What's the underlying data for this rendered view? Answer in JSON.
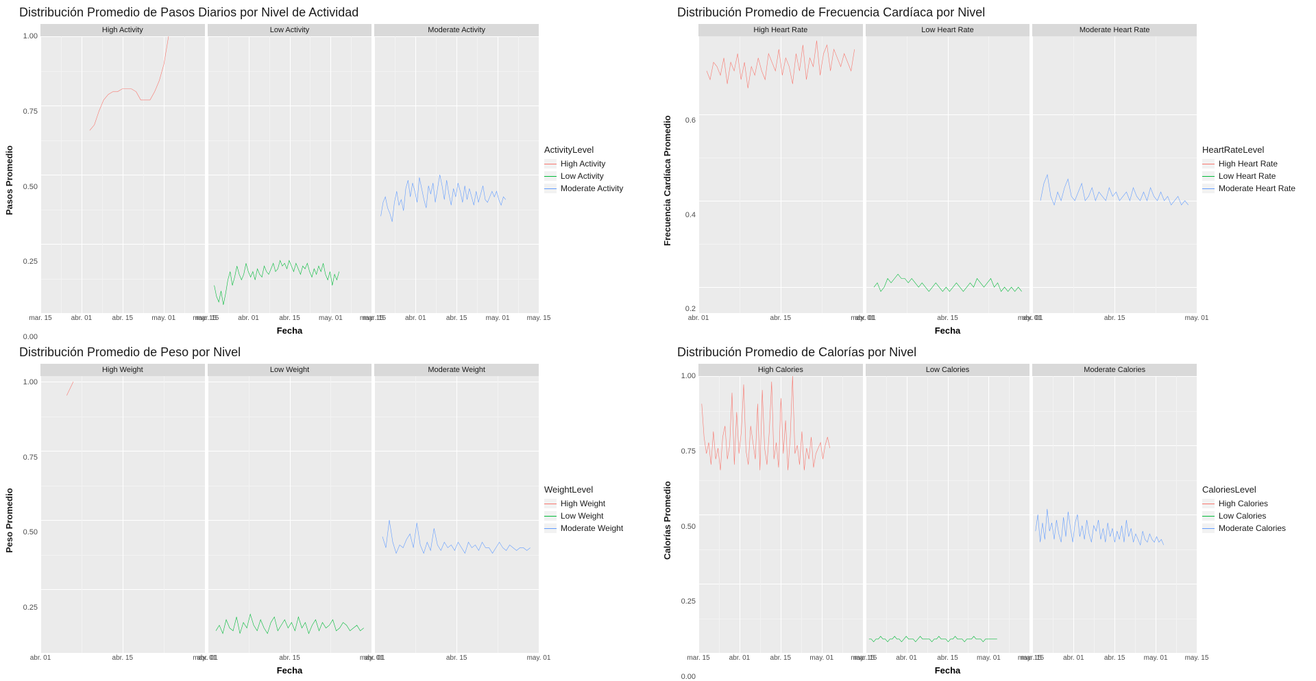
{
  "colors": {
    "red": "#f8766d",
    "green": "#00ba38",
    "blue": "#619cff",
    "panel_bg": "#ebebeb",
    "strip_bg": "#d9d9d9",
    "grid_major": "#ffffff",
    "grid_minor": "#f3f3f3",
    "text": "#1a1a1a"
  },
  "line_width": 1.0,
  "title_fontsize": 18,
  "strip_fontsize": 11,
  "axis_label_fontsize": 11,
  "axis_title_fontsize": 13,
  "legend_title_fontsize": 13,
  "legend_item_fontsize": 12,
  "charts": [
    {
      "id": "steps",
      "title": "Distribución Promedio de Pasos Diarios por Nivel de Actividad",
      "y_title": "Pasos Promedio",
      "x_title": "Fecha",
      "legend_title": "ActivityLevel",
      "ylim": [
        0.0,
        1.0
      ],
      "y_ticks": [
        "0.00",
        "0.25",
        "0.50",
        "0.75",
        "1.00"
      ],
      "x_ticks": [
        "mar. 15",
        "abr. 01",
        "abr. 15",
        "may. 01",
        "may. 15"
      ],
      "facets": [
        {
          "label": "High Activity",
          "color_key": "red",
          "x_start": 0.3,
          "x_end": 0.78,
          "values": [
            0.66,
            0.68,
            0.73,
            0.77,
            0.79,
            0.8,
            0.8,
            0.81,
            0.81,
            0.81,
            0.8,
            0.77,
            0.77,
            0.77,
            0.8,
            0.84,
            0.9,
            1.0
          ]
        },
        {
          "label": "Low Activity",
          "color_key": "green",
          "x_start": 0.04,
          "x_end": 0.8,
          "values": [
            0.1,
            0.06,
            0.04,
            0.08,
            0.03,
            0.07,
            0.12,
            0.15,
            0.1,
            0.13,
            0.17,
            0.14,
            0.12,
            0.14,
            0.18,
            0.15,
            0.13,
            0.15,
            0.12,
            0.16,
            0.14,
            0.13,
            0.17,
            0.15,
            0.14,
            0.16,
            0.18,
            0.15,
            0.16,
            0.19,
            0.17,
            0.18,
            0.16,
            0.19,
            0.17,
            0.15,
            0.18,
            0.16,
            0.14,
            0.17,
            0.16,
            0.18,
            0.15,
            0.13,
            0.16,
            0.14,
            0.17,
            0.15,
            0.18,
            0.14,
            0.12,
            0.15,
            0.1,
            0.14,
            0.12,
            0.15
          ]
        },
        {
          "label": "Moderate Activity",
          "color_key": "blue",
          "x_start": 0.04,
          "x_end": 0.8,
          "values": [
            0.35,
            0.4,
            0.42,
            0.38,
            0.36,
            0.33,
            0.4,
            0.44,
            0.39,
            0.41,
            0.37,
            0.45,
            0.48,
            0.42,
            0.47,
            0.44,
            0.4,
            0.49,
            0.45,
            0.41,
            0.38,
            0.46,
            0.43,
            0.47,
            0.4,
            0.45,
            0.5,
            0.46,
            0.41,
            0.48,
            0.43,
            0.39,
            0.45,
            0.42,
            0.47,
            0.44,
            0.4,
            0.46,
            0.41,
            0.45,
            0.42,
            0.39,
            0.44,
            0.4,
            0.43,
            0.46,
            0.41,
            0.4,
            0.42,
            0.44,
            0.42,
            0.44,
            0.41,
            0.39,
            0.42,
            0.41
          ]
        }
      ]
    },
    {
      "id": "heart",
      "title": "Distribución Promedio de Frecuencia Cardíaca por Nivel",
      "y_title": "Frecuencia Cardíaca Promedio",
      "x_title": "Fecha",
      "legend_title": "HeartRateLevel",
      "ylim": [
        0.14,
        0.78
      ],
      "y_ticks": [
        "0.2",
        "0.4",
        "0.6"
      ],
      "x_ticks": [
        "abr. 01",
        "abr. 15",
        "may. 01"
      ],
      "facets": [
        {
          "label": "High Heart Rate",
          "color_key": "red",
          "x_start": 0.05,
          "x_end": 0.95,
          "values": [
            0.7,
            0.68,
            0.72,
            0.71,
            0.69,
            0.73,
            0.67,
            0.72,
            0.7,
            0.74,
            0.68,
            0.72,
            0.66,
            0.71,
            0.69,
            0.73,
            0.7,
            0.68,
            0.74,
            0.72,
            0.7,
            0.75,
            0.69,
            0.73,
            0.71,
            0.67,
            0.74,
            0.7,
            0.76,
            0.68,
            0.73,
            0.71,
            0.77,
            0.69,
            0.74,
            0.76,
            0.7,
            0.75,
            0.73,
            0.71,
            0.74,
            0.72,
            0.7,
            0.75
          ]
        },
        {
          "label": "Low Heart Rate",
          "color_key": "green",
          "x_start": 0.05,
          "x_end": 0.95,
          "values": [
            0.2,
            0.21,
            0.19,
            0.2,
            0.22,
            0.21,
            0.22,
            0.23,
            0.22,
            0.22,
            0.21,
            0.22,
            0.21,
            0.2,
            0.21,
            0.2,
            0.19,
            0.2,
            0.21,
            0.2,
            0.19,
            0.2,
            0.19,
            0.2,
            0.21,
            0.2,
            0.19,
            0.2,
            0.21,
            0.2,
            0.22,
            0.21,
            0.2,
            0.21,
            0.22,
            0.2,
            0.21,
            0.19,
            0.2,
            0.19,
            0.2,
            0.19,
            0.2,
            0.19
          ]
        },
        {
          "label": "Moderate Heart Rate",
          "color_key": "blue",
          "x_start": 0.05,
          "x_end": 0.95,
          "values": [
            0.4,
            0.44,
            0.46,
            0.41,
            0.39,
            0.42,
            0.4,
            0.43,
            0.45,
            0.41,
            0.4,
            0.42,
            0.44,
            0.4,
            0.41,
            0.43,
            0.4,
            0.42,
            0.41,
            0.4,
            0.43,
            0.41,
            0.42,
            0.4,
            0.41,
            0.42,
            0.4,
            0.43,
            0.41,
            0.4,
            0.42,
            0.4,
            0.43,
            0.41,
            0.4,
            0.42,
            0.4,
            0.41,
            0.39,
            0.4,
            0.41,
            0.39,
            0.4,
            0.39
          ]
        }
      ]
    },
    {
      "id": "weight",
      "title": "Distribución Promedo de Peso por Nivel",
      "title_override": "Distribución Promedio de Peso por Nivel",
      "y_title": "Peso Promedio",
      "x_title": "Fecha",
      "legend_title": "WeightLevel",
      "ylim": [
        0.02,
        1.02
      ],
      "y_ticks": [
        "0.25",
        "0.50",
        "0.75",
        "1.00"
      ],
      "x_ticks": [
        "abr. 01",
        "abr. 15",
        "may. 01"
      ],
      "facets": [
        {
          "label": "High Weight",
          "color_key": "red",
          "x_start": 0.16,
          "x_end": 0.2,
          "values": [
            0.95,
            1.0
          ]
        },
        {
          "label": "Low Weight",
          "color_key": "green",
          "x_start": 0.05,
          "x_end": 0.95,
          "values": [
            0.1,
            0.12,
            0.09,
            0.14,
            0.11,
            0.1,
            0.15,
            0.09,
            0.13,
            0.11,
            0.16,
            0.12,
            0.1,
            0.14,
            0.11,
            0.09,
            0.13,
            0.15,
            0.1,
            0.12,
            0.14,
            0.11,
            0.13,
            0.1,
            0.15,
            0.11,
            0.13,
            0.09,
            0.12,
            0.14,
            0.1,
            0.13,
            0.11,
            0.12,
            0.14,
            0.1,
            0.11,
            0.13,
            0.12,
            0.1,
            0.11,
            0.12,
            0.1,
            0.11
          ]
        },
        {
          "label": "Moderate Weight",
          "color_key": "blue",
          "x_start": 0.05,
          "x_end": 0.95,
          "values": [
            0.44,
            0.4,
            0.5,
            0.42,
            0.38,
            0.41,
            0.4,
            0.43,
            0.45,
            0.4,
            0.49,
            0.41,
            0.38,
            0.42,
            0.39,
            0.47,
            0.41,
            0.39,
            0.42,
            0.4,
            0.41,
            0.39,
            0.42,
            0.4,
            0.38,
            0.42,
            0.4,
            0.41,
            0.39,
            0.42,
            0.4,
            0.4,
            0.38,
            0.4,
            0.42,
            0.4,
            0.39,
            0.41,
            0.4,
            0.39,
            0.4,
            0.4,
            0.39,
            0.4
          ]
        }
      ]
    },
    {
      "id": "calories",
      "title": "Distribución Promedio de Calorías por Nivel",
      "y_title": "Calorías Promedio",
      "x_title": "Fecha",
      "legend_title": "CaloriesLevel",
      "ylim": [
        0.0,
        1.0
      ],
      "y_ticks": [
        "0.00",
        "0.25",
        "0.50",
        "0.75",
        "1.00"
      ],
      "x_ticks": [
        "mar. 15",
        "abr. 01",
        "abr. 15",
        "may. 01",
        "may. 15"
      ],
      "facets": [
        {
          "label": "High Calories",
          "color_key": "red",
          "x_start": 0.02,
          "x_end": 0.8,
          "values": [
            0.9,
            0.78,
            0.72,
            0.76,
            0.68,
            0.8,
            0.7,
            0.74,
            0.66,
            0.78,
            0.82,
            0.7,
            0.75,
            0.94,
            0.68,
            0.87,
            0.72,
            0.8,
            0.97,
            0.73,
            0.68,
            0.82,
            0.76,
            0.7,
            0.9,
            0.66,
            0.95,
            0.74,
            0.68,
            0.8,
            0.98,
            0.7,
            0.76,
            0.67,
            0.92,
            0.72,
            0.84,
            0.66,
            0.78,
            1.0,
            0.72,
            0.75,
            0.68,
            0.8,
            0.66,
            0.74,
            0.7,
            0.78,
            0.67,
            0.72,
            0.74,
            0.76,
            0.7,
            0.75,
            0.78,
            0.74
          ]
        },
        {
          "label": "Low Calories",
          "color_key": "green",
          "x_start": 0.02,
          "x_end": 0.8,
          "values": [
            0.05,
            0.05,
            0.04,
            0.05,
            0.05,
            0.06,
            0.05,
            0.05,
            0.04,
            0.05,
            0.05,
            0.06,
            0.05,
            0.05,
            0.04,
            0.05,
            0.06,
            0.05,
            0.05,
            0.05,
            0.04,
            0.05,
            0.06,
            0.05,
            0.05,
            0.05,
            0.05,
            0.04,
            0.05,
            0.05,
            0.06,
            0.05,
            0.05,
            0.05,
            0.04,
            0.05,
            0.05,
            0.06,
            0.05,
            0.05,
            0.05,
            0.04,
            0.05,
            0.05,
            0.05,
            0.06,
            0.05,
            0.05,
            0.05,
            0.04,
            0.05,
            0.05,
            0.05,
            0.05,
            0.05,
            0.05
          ]
        },
        {
          "label": "Moderate Calories",
          "color_key": "blue",
          "x_start": 0.02,
          "x_end": 0.8,
          "values": [
            0.44,
            0.5,
            0.4,
            0.47,
            0.41,
            0.52,
            0.44,
            0.47,
            0.41,
            0.48,
            0.43,
            0.4,
            0.49,
            0.42,
            0.51,
            0.45,
            0.4,
            0.47,
            0.5,
            0.42,
            0.46,
            0.41,
            0.48,
            0.43,
            0.4,
            0.46,
            0.44,
            0.48,
            0.41,
            0.45,
            0.4,
            0.47,
            0.42,
            0.45,
            0.4,
            0.44,
            0.41,
            0.46,
            0.4,
            0.48,
            0.42,
            0.45,
            0.4,
            0.43,
            0.41,
            0.39,
            0.44,
            0.41,
            0.4,
            0.43,
            0.41,
            0.4,
            0.42,
            0.4,
            0.41,
            0.39
          ]
        }
      ]
    }
  ]
}
